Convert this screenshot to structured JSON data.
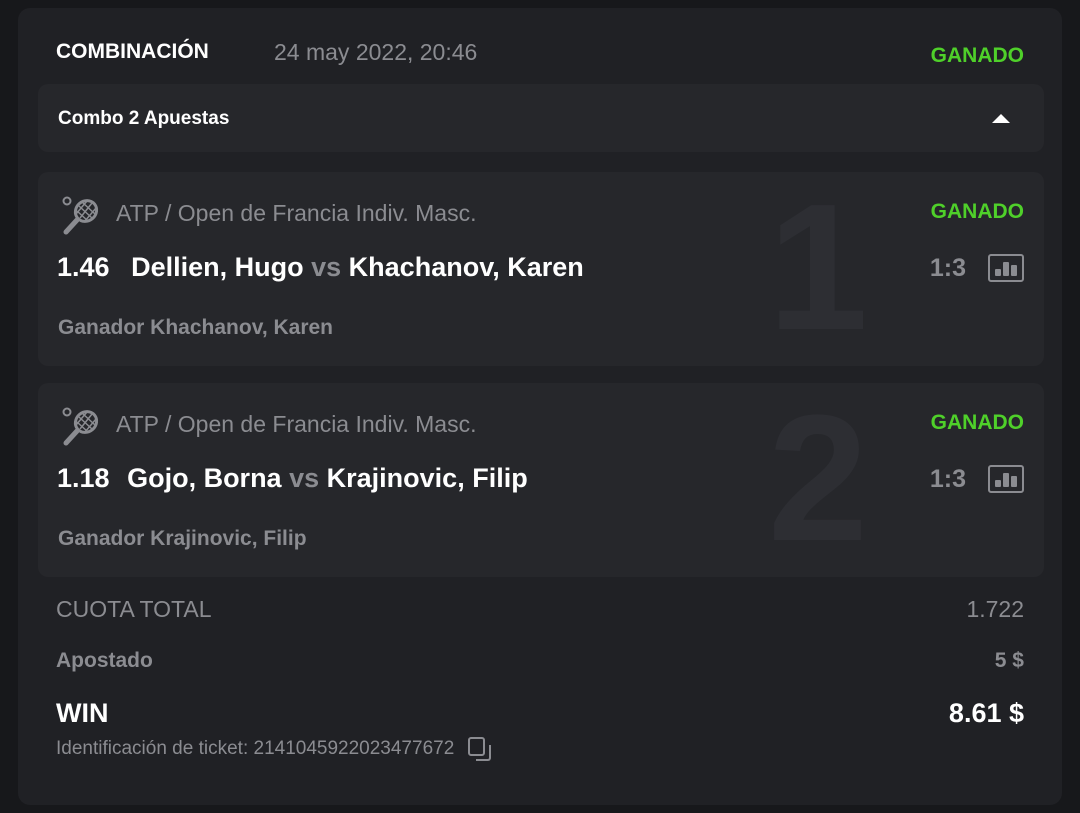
{
  "header": {
    "title": "COMBINACIÓN",
    "date": "24 may 2022, 20:46",
    "status": "GANADO"
  },
  "combo": {
    "label": "Combo 2 Apuestas",
    "toggle_icon": "caret-up-icon"
  },
  "bets": [
    {
      "index": "1",
      "sport_icon": "tennis-racket-icon",
      "league": "ATP / Open de Francia Indiv. Masc.",
      "status": "GANADO",
      "odd": "1.46",
      "home": "Dellien, Hugo",
      "vs": "vs",
      "away": "Khachanov, Karen",
      "score": "1:3",
      "pick": "Ganador Khachanov, Karen"
    },
    {
      "index": "2",
      "sport_icon": "tennis-racket-icon",
      "league": "ATP / Open de Francia Indiv. Masc.",
      "status": "GANADO",
      "odd": "1.18",
      "home": "Gojo, Borna",
      "vs": "vs",
      "away": "Krajinovic, Filip",
      "score": "1:3",
      "pick": "Ganador Krajinovic, Filip"
    }
  ],
  "summary": {
    "total_odds_label": "CUOTA TOTAL",
    "total_odds": "1.722",
    "stake_label": "Apostado",
    "stake": "5 $",
    "win_label": "WIN",
    "win": "8.61 $",
    "ticket_id": "Identificación de ticket: 2141045922023477672"
  },
  "colors": {
    "win_green": "#4fd02a",
    "background": "#202125",
    "card": "#26272b",
    "muted": "#8b8c91"
  }
}
